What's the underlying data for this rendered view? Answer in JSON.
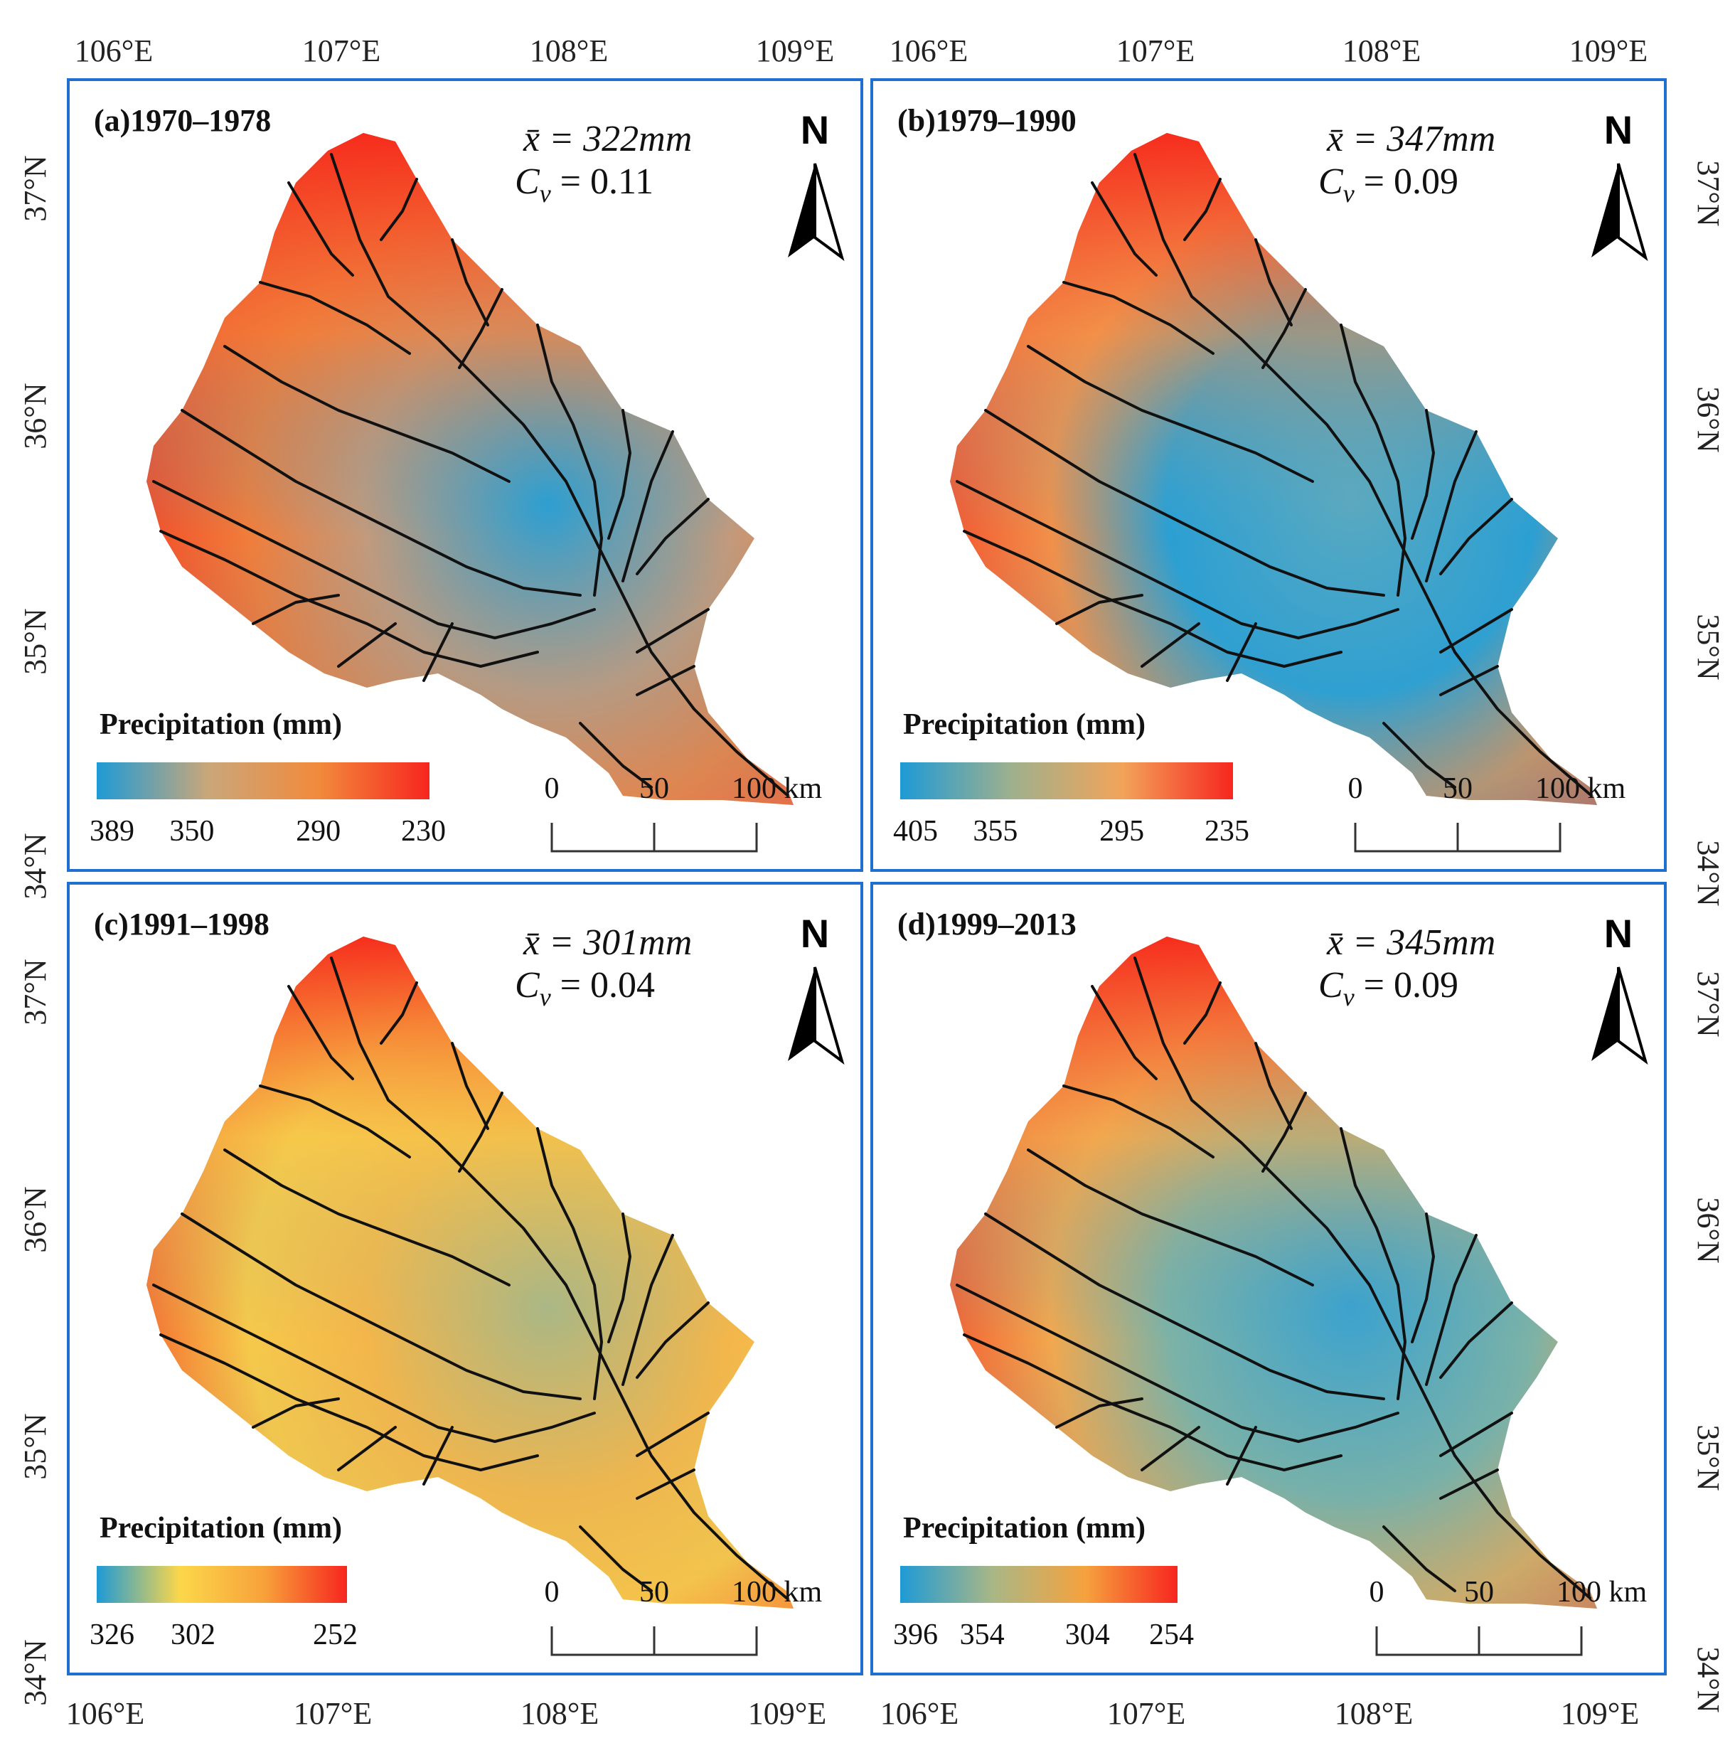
{
  "axes": {
    "lon_labels": [
      "106°E",
      "107°E",
      "108°E",
      "109°E"
    ],
    "lat_labels": [
      "37°N",
      "36°N",
      "35°N",
      "34°N"
    ]
  },
  "panels": [
    {
      "label": "(a)1970–1978",
      "mean_label": "x̄ = 322mm",
      "cv_label": "C",
      "cv_sub": "v",
      "cv_value": " = 0.11",
      "legend_title": "Precipitation (mm)",
      "legend_values": [
        "389",
        "350",
        "290",
        "230"
      ],
      "gradient": [
        "#1e9ad6",
        "#c9a77a",
        "#f28a3c",
        "#f7261f"
      ],
      "map_colors": {
        "north": "#f62a1c",
        "mid": "#f17d3a",
        "center": "#2b9fd3",
        "south": "#c29a7c"
      },
      "north_arrow": "N",
      "scale_labels": [
        "0",
        "50",
        "100 km"
      ]
    },
    {
      "label": "(b)1979–1990",
      "mean_label": "x̄ = 347mm",
      "cv_label": "C",
      "cv_sub": "v",
      "cv_value": " = 0.09",
      "legend_title": "Precipitation (mm)",
      "legend_values": [
        "405",
        "355",
        "295",
        "235"
      ],
      "gradient": [
        "#1e9ad6",
        "#9eb08e",
        "#f2a45a",
        "#f7261f"
      ],
      "map_colors": {
        "north": "#f62a1c",
        "mid": "#f29049",
        "center": "#5aa9c0",
        "south": "#2b9fd3"
      },
      "north_arrow": "N",
      "scale_labels": [
        "0",
        "50",
        "100 km"
      ]
    },
    {
      "label": "(c)1991–1998",
      "mean_label": "x̄ = 301mm",
      "cv_label": "C",
      "cv_sub": "v",
      "cv_value": " = 0.04",
      "legend_title": "Precipitation (mm)",
      "legend_values": [
        "326",
        "302",
        "252"
      ],
      "gradient": [
        "#1e9ad6",
        "#fcd74a",
        "#f7a23a",
        "#f7261f"
      ],
      "map_colors": {
        "north": "#f62a1c",
        "mid": "#f6c94a",
        "center": "#a9b786",
        "south": "#f4b64a"
      },
      "north_arrow": "N",
      "scale_labels": [
        "0",
        "50",
        "100 km"
      ]
    },
    {
      "label": "(d)1999–2013",
      "mean_label": "x̄ = 345mm",
      "cv_label": "C",
      "cv_sub": "v",
      "cv_value": " = 0.09",
      "legend_title": "Precipitation (mm)",
      "legend_values": [
        "396",
        "354",
        "304",
        "254"
      ],
      "gradient": [
        "#1e9ad6",
        "#a9b786",
        "#f6a23e",
        "#f7261f"
      ],
      "map_colors": {
        "north": "#f62a1c",
        "mid": "#f2a84e",
        "center": "#3aa2cf",
        "south": "#7db2a6"
      },
      "north_arrow": "N",
      "scale_labels": [
        "0",
        "50",
        "100 km"
      ]
    }
  ]
}
